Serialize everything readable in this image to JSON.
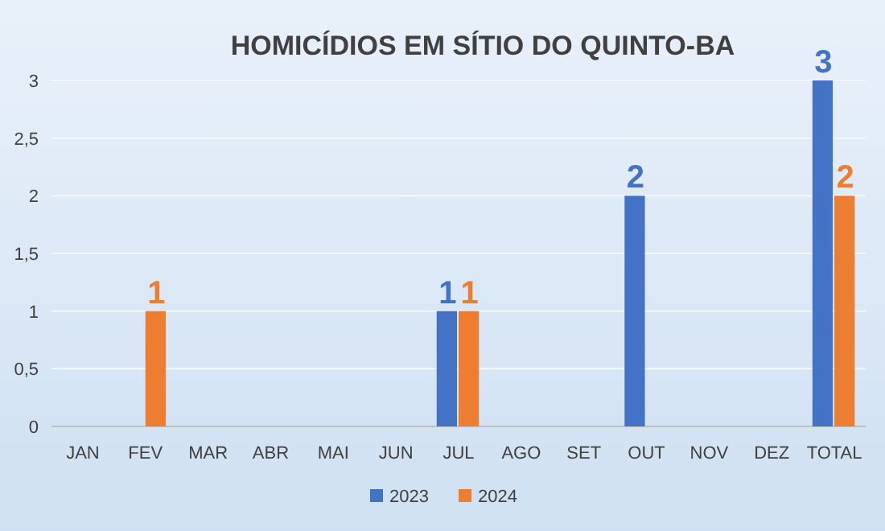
{
  "chart_data": {
    "type": "bar",
    "title": "HOMICÍDIOS EM SÍTIO DO QUINTO-BA",
    "categories": [
      "JAN",
      "FEV",
      "MAR",
      "ABR",
      "MAI",
      "JUN",
      "JUL",
      "AGO",
      "SET",
      "OUT",
      "NOV",
      "DEZ",
      "TOTAL"
    ],
    "series": [
      {
        "name": "2023",
        "color": "#4472c4",
        "values": [
          0,
          0,
          0,
          0,
          0,
          0,
          1,
          0,
          0,
          2,
          0,
          0,
          3
        ],
        "value_labels": [
          null,
          null,
          null,
          null,
          null,
          null,
          "1",
          null,
          null,
          "2",
          null,
          null,
          "3"
        ]
      },
      {
        "name": "2024",
        "color": "#ed7d31",
        "values": [
          0,
          1,
          0,
          0,
          0,
          0,
          1,
          0,
          0,
          0,
          0,
          0,
          2
        ],
        "value_labels": [
          null,
          "1",
          null,
          null,
          null,
          null,
          "1",
          null,
          null,
          null,
          null,
          null,
          "2"
        ]
      }
    ],
    "ylim": [
      0,
      3
    ],
    "yticks": [
      0,
      {
        "value": 0.5,
        "label": "0,5"
      },
      1,
      {
        "value": 1.5,
        "label": "1,5"
      },
      2,
      {
        "value": 2.5,
        "label": "2,5"
      },
      3
    ],
    "grid": "y",
    "legend": "bottom"
  }
}
